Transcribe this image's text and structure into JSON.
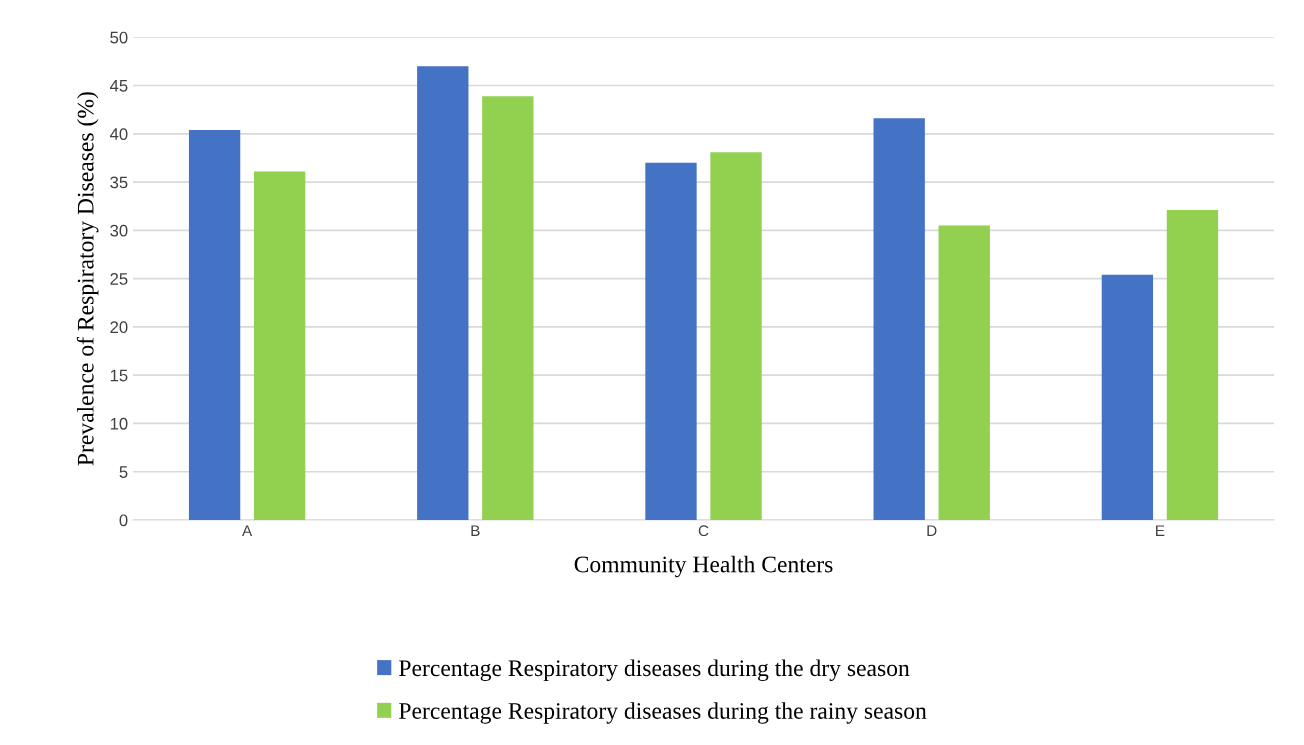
{
  "chart_data": {
    "type": "bar",
    "xlabel": "Community Health Centers",
    "ylabel": "Prevalence of Respiratory Diseases (%)",
    "categories": [
      "A",
      "B",
      "C",
      "D",
      "E"
    ],
    "series": [
      {
        "name": "Percentage Respiratory diseases during the dry season",
        "color": "#4472c4",
        "values": [
          40.4,
          47.0,
          37.0,
          41.6,
          25.4
        ]
      },
      {
        "name": "Percentage Respiratory diseases during the rainy season",
        "color": "#92d050",
        "values": [
          36.1,
          43.9,
          38.1,
          30.5,
          32.1
        ]
      }
    ],
    "ylim": [
      0,
      50
    ],
    "yticks": [
      0,
      5,
      10,
      15,
      20,
      25,
      30,
      35,
      40,
      45,
      50
    ],
    "grid": "y",
    "legend": "bottom"
  }
}
